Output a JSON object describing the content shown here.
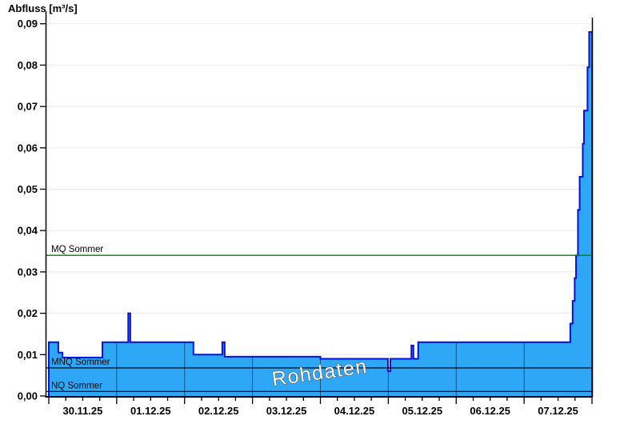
{
  "title": "Abfluss [m³/s]",
  "watermark": "Rohdaten",
  "chart_data": {
    "type": "area",
    "title": "Abfluss [m³/s]",
    "ylabel": "Abfluss [m³/s]",
    "unit": "m³/s",
    "ylim": [
      0,
      0.092
    ],
    "grid": true,
    "legend": false,
    "y_ticks": [
      {
        "value": 0.0,
        "label": "0,00"
      },
      {
        "value": 0.01,
        "label": "0,01"
      },
      {
        "value": 0.02,
        "label": "0,02"
      },
      {
        "value": 0.03,
        "label": "0,03"
      },
      {
        "value": 0.04,
        "label": "0,04"
      },
      {
        "value": 0.05,
        "label": "0,05"
      },
      {
        "value": 0.06,
        "label": "0,06"
      },
      {
        "value": 0.07,
        "label": "0,07"
      },
      {
        "value": 0.08,
        "label": "0,08"
      },
      {
        "value": 0.09,
        "label": "0,09"
      }
    ],
    "x_days": [
      "30.11.25",
      "01.12.25",
      "02.12.25",
      "03.12.25",
      "04.12.25",
      "05.12.25",
      "06.12.25",
      "07.12.25"
    ],
    "x_minor_ticks_per_day": 4,
    "series": [
      {
        "name": "Rohdaten",
        "end_t": 8,
        "step_points": [
          {
            "t": 0.0,
            "v": 0.013
          },
          {
            "t": 0.14,
            "v": 0.0105
          },
          {
            "t": 0.2,
            "v": 0.0093
          },
          {
            "t": 0.79,
            "v": 0.013
          },
          {
            "t": 1.17,
            "v": 0.02
          },
          {
            "t": 1.2,
            "v": 0.013
          },
          {
            "t": 2.13,
            "v": 0.01
          },
          {
            "t": 2.555,
            "v": 0.013
          },
          {
            "t": 2.59,
            "v": 0.0095
          },
          {
            "t": 4.0,
            "v": 0.009
          },
          {
            "t": 4.995,
            "v": 0.006
          },
          {
            "t": 5.03,
            "v": 0.009
          },
          {
            "t": 5.34,
            "v": 0.0122
          },
          {
            "t": 5.37,
            "v": 0.009
          },
          {
            "t": 5.44,
            "v": 0.013
          },
          {
            "t": 7.68,
            "v": 0.0175
          },
          {
            "t": 7.715,
            "v": 0.023
          },
          {
            "t": 7.745,
            "v": 0.0285
          },
          {
            "t": 7.765,
            "v": 0.034
          },
          {
            "t": 7.793,
            "v": 0.045
          },
          {
            "t": 7.818,
            "v": 0.053
          },
          {
            "t": 7.864,
            "v": 0.061
          },
          {
            "t": 7.882,
            "v": 0.069
          },
          {
            "t": 7.934,
            "v": 0.0795
          },
          {
            "t": 7.958,
            "v": 0.088
          }
        ]
      }
    ],
    "reference_lines": [
      {
        "name": "MQ Sommer",
        "value": 0.034,
        "color": "#008000",
        "width": 1.4
      },
      {
        "name": "MNQ Sommer",
        "value": 0.0068,
        "color": "#000000",
        "width": 1.2
      },
      {
        "name": "NQ Sommer",
        "value": 0.0011,
        "color": "#000000",
        "width": 1.2
      }
    ],
    "colors": {
      "fill": "#2ea7f7",
      "line": "#0013d9",
      "grid": "#e8e8e8",
      "day_grid": "rgba(0,0,0,0.5)",
      "axis": "#000000"
    }
  }
}
